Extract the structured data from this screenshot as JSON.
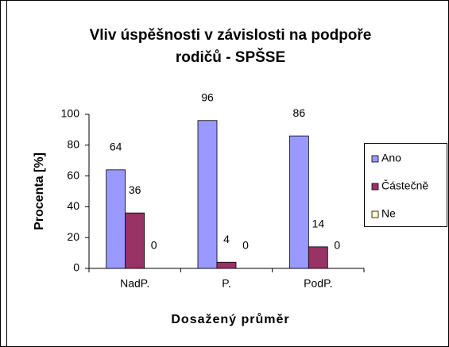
{
  "chart_data": {
    "type": "bar",
    "title": [
      "Vliv úspěšnosti v závislosti na podpoře",
      "rodičů - SPŠSE"
    ],
    "xlabel": "Dosažený průměr",
    "ylabel": "Procenta [%]",
    "categories": [
      "NadP.",
      "P.",
      "PodP."
    ],
    "series": [
      {
        "name": "Ano",
        "color": "#9999ff",
        "values": [
          64,
          96,
          86
        ]
      },
      {
        "name": "Částečně",
        "color": "#993366",
        "values": [
          36,
          4,
          14
        ]
      },
      {
        "name": "Ne",
        "color": "#ffffcc",
        "values": [
          0,
          0,
          0
        ]
      }
    ],
    "ylim": [
      0,
      100
    ],
    "yticks": [
      0,
      20,
      40,
      60,
      80,
      100
    ],
    "grid": false,
    "legend": "right"
  }
}
